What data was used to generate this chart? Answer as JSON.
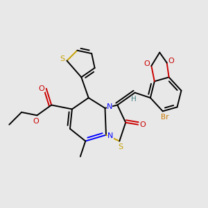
{
  "background_color": "#e8e8e8",
  "figsize": [
    3.0,
    3.0
  ],
  "dpi": 100,
  "colors": {
    "S": "#c8a000",
    "N": "#0000ff",
    "O": "#cc0000",
    "Br": "#c87800",
    "H": "#408080",
    "C": "#000000"
  },
  "bond_lw": 1.4,
  "font_size": 7.5
}
